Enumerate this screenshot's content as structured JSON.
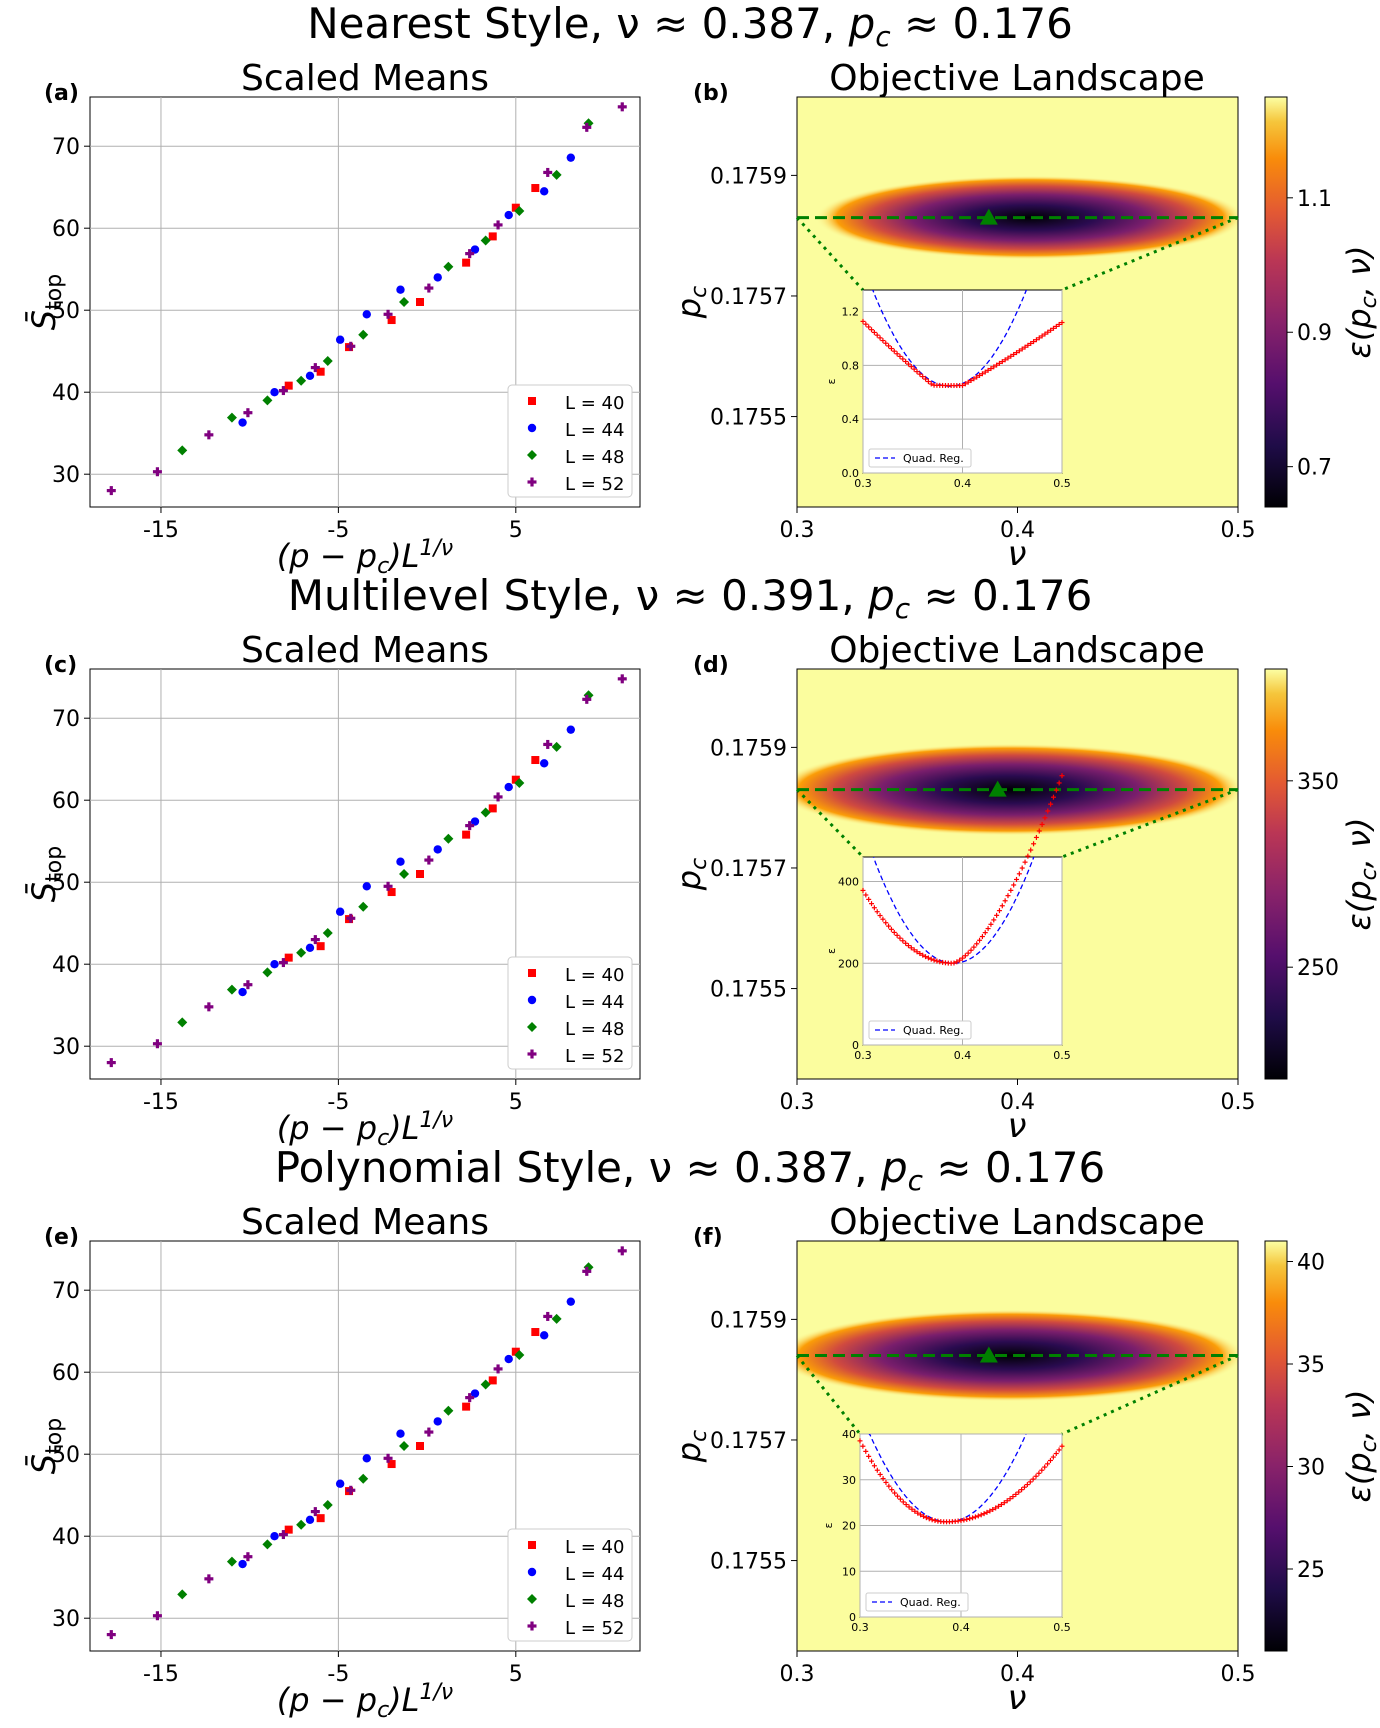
{
  "panel_letters": [
    "(a)",
    "(b)",
    "(c)",
    "(d)",
    "(e)",
    "(f)"
  ],
  "rows": [
    {
      "title_prefix": "Nearest Style, ν ≈ 0.387, ",
      "title_suffix": " ≈ 0.176",
      "left_title": "Scaled Means",
      "right_title": "Objective Landscape",
      "cbar_ticks": [
        "1.1",
        "0.9",
        "0.7"
      ],
      "inset_y_ticks": [
        "1.2",
        "0.8",
        "0.4",
        "0.0"
      ]
    },
    {
      "title_prefix": "Multilevel Style, ν ≈ 0.391, ",
      "title_suffix": " ≈ 0.176",
      "left_title": "Scaled Means",
      "right_title": "Objective Landscape",
      "cbar_ticks": [
        "350",
        "250"
      ],
      "inset_y_ticks": [
        "400",
        "200",
        "0"
      ]
    },
    {
      "title_prefix": "Polynomial Style, ν ≈ 0.387, ",
      "title_suffix": " ≈ 0.176",
      "left_title": "Scaled Means",
      "right_title": "Objective Landscape",
      "cbar_ticks": [
        "40",
        "35",
        "30",
        "25"
      ],
      "inset_y_ticks": [
        "40",
        "30",
        "20",
        "10",
        "0"
      ]
    }
  ],
  "legend": [
    "L = 40",
    "L = 44",
    "L = 48",
    "L = 52"
  ],
  "inset_legend": "Quad. Reg.",
  "inset_ylabel": "ε",
  "cbar_label": "ε(p_c, ν)",
  "left_x_ticks": [
    "-15",
    "-5",
    "5"
  ],
  "left_y_ticks": [
    "70",
    "60",
    "50",
    "40",
    "30"
  ],
  "right_x_ticks": [
    "0.3",
    "0.4",
    "0.5"
  ],
  "right_y_ticks": [
    "0.1759",
    "0.1757",
    "0.1755"
  ],
  "inset_x_ticks": [
    "0.3",
    "0.4",
    "0.5"
  ],
  "colors": {
    "L40": "#ff0000",
    "L44": "#0000ff",
    "L48": "#008000",
    "L52": "#800080",
    "fit": "#0000ff",
    "marker": "#008000"
  },
  "chart_data": [
    {
      "type": "scatter",
      "title": "Scaled Means",
      "xlabel": "(p − p_c)L^{1/ν}",
      "ylabel": "S̄_top",
      "ylim": [
        26,
        76
      ],
      "series": [
        {
          "name": "L = 40",
          "x": [
            -7.8,
            -6.0,
            -4.4,
            -2.0,
            -0.4,
            2.2,
            3.7,
            5.0,
            6.1
          ],
          "y": [
            40.8,
            42.5,
            45.5,
            48.8,
            51.0,
            55.8,
            59.0,
            62.5,
            64.9
          ]
        },
        {
          "name": "L = 44",
          "x": [
            -10.4,
            -8.6,
            -6.6,
            -4.9,
            -3.4,
            -1.5,
            0.6,
            2.7,
            4.6,
            6.6,
            8.1
          ],
          "y": [
            36.3,
            40.0,
            42.0,
            46.4,
            49.5,
            52.5,
            54.0,
            57.4,
            61.6,
            64.5,
            68.6
          ]
        },
        {
          "name": "L = 48",
          "x": [
            -13.8,
            -11.0,
            -9.0,
            -7.1,
            -5.6,
            -3.6,
            -1.3,
            1.2,
            3.3,
            5.2,
            7.3,
            9.1
          ],
          "y": [
            32.9,
            36.9,
            39.0,
            41.4,
            43.8,
            47.0,
            51.0,
            55.3,
            58.5,
            62.1,
            66.5,
            72.8
          ]
        },
        {
          "name": "L = 52",
          "x": [
            -17.8,
            -15.2,
            -12.3,
            -10.1,
            -8.1,
            -6.3,
            -4.3,
            -2.2,
            0.1,
            2.4,
            4.0,
            6.8,
            9.0,
            11.0
          ],
          "y": [
            28.0,
            30.3,
            34.8,
            37.5,
            40.2,
            43.0,
            45.6,
            49.5,
            52.7,
            56.9,
            60.4,
            66.8,
            72.3,
            74.8
          ]
        }
      ]
    },
    {
      "type": "heatmap",
      "title": "Objective Landscape",
      "xlabel": "ν",
      "ylabel": "p_c",
      "xlim": [
        0.3,
        0.5
      ],
      "minimum": {
        "nu": 0.387,
        "p_c": 0.17583
      },
      "colorbar_range": [
        0.64,
        1.25
      ]
    },
    {
      "type": "scatter",
      "title": "Scaled Means",
      "xlabel": "(p − p_c)L^{1/ν}",
      "ylabel": "S̄_top",
      "ylim": [
        26,
        76
      ],
      "series": [
        {
          "name": "L = 40",
          "x": [
            -7.8,
            -6.0,
            -4.4,
            -2.0,
            -0.4,
            2.2,
            3.7,
            5.0,
            6.1
          ],
          "y": [
            40.8,
            42.2,
            45.5,
            48.8,
            51.0,
            55.8,
            59.0,
            62.5,
            64.9
          ]
        },
        {
          "name": "L = 44",
          "x": [
            -10.4,
            -8.6,
            -6.6,
            -4.9,
            -3.4,
            -1.5,
            0.6,
            2.7,
            4.6,
            6.6,
            8.1
          ],
          "y": [
            36.6,
            40.0,
            42.0,
            46.4,
            49.5,
            52.5,
            54.0,
            57.4,
            61.6,
            64.5,
            68.6
          ]
        },
        {
          "name": "L = 48",
          "x": [
            -13.8,
            -11.0,
            -9.0,
            -7.1,
            -5.6,
            -3.6,
            -1.3,
            1.2,
            3.3,
            5.2,
            7.3,
            9.1
          ],
          "y": [
            32.9,
            36.9,
            39.0,
            41.4,
            43.8,
            47.0,
            51.0,
            55.3,
            58.5,
            62.1,
            66.5,
            72.8
          ]
        },
        {
          "name": "L = 52",
          "x": [
            -17.8,
            -15.2,
            -12.3,
            -10.1,
            -8.1,
            -6.3,
            -4.3,
            -2.2,
            0.1,
            2.4,
            4.0,
            6.8,
            9.0,
            11.0
          ],
          "y": [
            28.0,
            30.3,
            34.8,
            37.5,
            40.2,
            43.0,
            45.6,
            49.5,
            52.7,
            56.9,
            60.4,
            66.8,
            72.3,
            74.8
          ]
        }
      ]
    },
    {
      "type": "heatmap",
      "title": "Objective Landscape",
      "xlabel": "ν",
      "ylabel": "p_c",
      "xlim": [
        0.3,
        0.5
      ],
      "minimum": {
        "nu": 0.391,
        "p_c": 0.17583
      },
      "colorbar_range": [
        190,
        410
      ]
    },
    {
      "type": "scatter",
      "title": "Scaled Means",
      "xlabel": "(p − p_c)L^{1/ν}",
      "ylabel": "S̄_top",
      "ylim": [
        26,
        76
      ],
      "series": [
        {
          "name": "L = 40",
          "x": [
            -7.8,
            -6.0,
            -4.4,
            -2.0,
            -0.4,
            2.2,
            3.7,
            5.0,
            6.1
          ],
          "y": [
            40.8,
            42.2,
            45.5,
            48.8,
            51.0,
            55.8,
            59.0,
            62.5,
            64.9
          ]
        },
        {
          "name": "L = 44",
          "x": [
            -10.4,
            -8.6,
            -6.6,
            -4.9,
            -3.4,
            -1.5,
            0.6,
            2.7,
            4.6,
            6.6,
            8.1
          ],
          "y": [
            36.6,
            40.0,
            42.0,
            46.4,
            49.5,
            52.5,
            54.0,
            57.4,
            61.6,
            64.5,
            68.6
          ]
        },
        {
          "name": "L = 48",
          "x": [
            -13.8,
            -11.0,
            -9.0,
            -7.1,
            -5.6,
            -3.6,
            -1.3,
            1.2,
            3.3,
            5.2,
            7.3,
            9.1
          ],
          "y": [
            32.9,
            36.9,
            39.0,
            41.4,
            43.8,
            47.0,
            51.0,
            55.3,
            58.5,
            62.1,
            66.5,
            72.8
          ]
        },
        {
          "name": "L = 52",
          "x": [
            -17.8,
            -15.2,
            -12.3,
            -10.1,
            -8.1,
            -6.3,
            -4.3,
            -2.2,
            0.1,
            2.4,
            4.0,
            6.8,
            9.0,
            11.0
          ],
          "y": [
            28.0,
            30.3,
            34.8,
            37.5,
            40.2,
            43.0,
            45.6,
            49.5,
            52.7,
            56.9,
            60.4,
            66.8,
            72.3,
            74.8
          ]
        }
      ]
    },
    {
      "type": "heatmap",
      "title": "Objective Landscape",
      "xlabel": "ν",
      "ylabel": "p_c",
      "xlim": [
        0.3,
        0.5
      ],
      "minimum": {
        "nu": 0.387,
        "p_c": 0.17584
      },
      "colorbar_range": [
        21,
        41
      ]
    }
  ]
}
